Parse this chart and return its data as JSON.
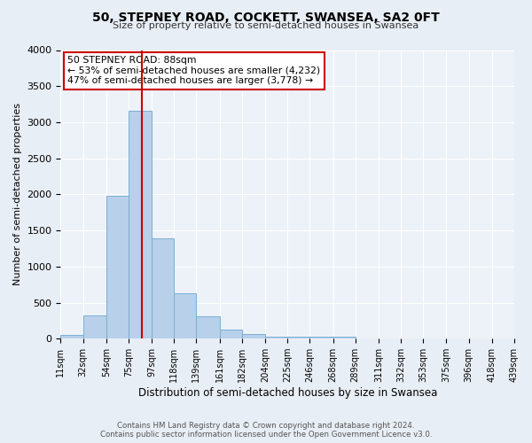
{
  "title": "50, STEPNEY ROAD, COCKETT, SWANSEA, SA2 0FT",
  "subtitle": "Size of property relative to semi-detached houses in Swansea",
  "xlabel": "Distribution of semi-detached houses by size in Swansea",
  "ylabel": "Number of semi-detached properties",
  "bin_edges": [
    11,
    32,
    54,
    75,
    97,
    118,
    139,
    161,
    182,
    204,
    225,
    246,
    268,
    289,
    311,
    332,
    353,
    375,
    396,
    418,
    439
  ],
  "bin_counts": [
    50,
    325,
    1975,
    3160,
    1390,
    635,
    305,
    130,
    65,
    30,
    25,
    30,
    25,
    0,
    0,
    0,
    0,
    0,
    0,
    0
  ],
  "property_size": 88,
  "property_label": "50 STEPNEY ROAD: 88sqm",
  "pct_smaller": 53,
  "n_smaller": 4232,
  "pct_larger": 47,
  "n_larger": 3778,
  "bar_color": "#b8d0ea",
  "bar_edge_color": "#7aafd4",
  "vline_color": "#cc0000",
  "box_edge_color": "#cc0000",
  "background_color": "#e8eef5",
  "plot_bg_color": "#edf2f8",
  "ylim": [
    0,
    4000
  ],
  "yticks": [
    0,
    500,
    1000,
    1500,
    2000,
    2500,
    3000,
    3500,
    4000
  ],
  "footer_line1": "Contains HM Land Registry data © Crown copyright and database right 2024.",
  "footer_line2": "Contains public sector information licensed under the Open Government Licence v3.0."
}
